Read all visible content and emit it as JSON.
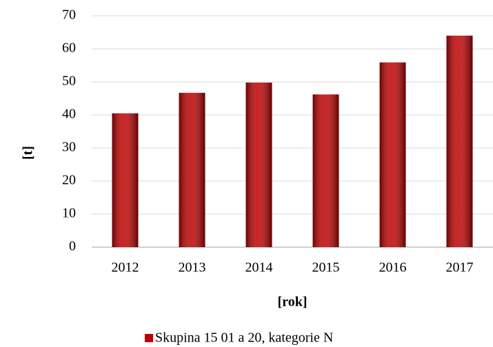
{
  "chart_data": {
    "type": "bar",
    "categories": [
      "2012",
      "2013",
      "2014",
      "2015",
      "2016",
      "2017"
    ],
    "series": [
      {
        "name": "Skupina 15 01 a 20, kategorie N",
        "color": "#c00000",
        "values": [
          40.5,
          46.7,
          49.8,
          46.2,
          55.9,
          64.0
        ]
      }
    ],
    "ylim": [
      0,
      70
    ],
    "yticks": [
      0,
      10,
      20,
      30,
      40,
      50,
      60,
      70
    ],
    "ylabel": "[t]",
    "xlabel": "[rok]",
    "grid": true,
    "legend": "bottom"
  }
}
